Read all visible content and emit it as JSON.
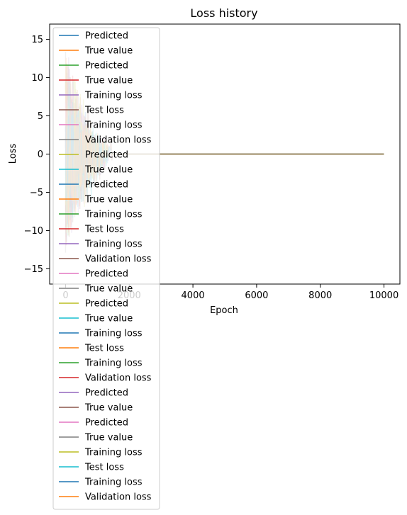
{
  "chart_data": {
    "type": "line",
    "title": "Loss history",
    "xlabel": "Epoch",
    "ylabel": "Loss",
    "xlim": [
      -500,
      10500
    ],
    "ylim": [
      -17,
      17
    ],
    "x_ticks": [
      0,
      2000,
      4000,
      6000,
      8000,
      10000
    ],
    "y_ticks": [
      -15,
      -10,
      -5,
      0,
      5,
      10,
      15
    ],
    "grid": false,
    "legend_position": "upper-left",
    "noise": {
      "x_range": [
        0,
        1500
      ],
      "amplitude_max": 14.8
    },
    "series": [
      {
        "name": "Predicted",
        "color": "#1f77b4"
      },
      {
        "name": "True value",
        "color": "#ff7f0e"
      },
      {
        "name": "Predicted",
        "color": "#2ca02c"
      },
      {
        "name": "True value",
        "color": "#d62728"
      },
      {
        "name": "Training loss",
        "color": "#9467bd"
      },
      {
        "name": "Test loss",
        "color": "#8c564b"
      },
      {
        "name": "Training loss",
        "color": "#e377c2"
      },
      {
        "name": "Validation loss",
        "color": "#7f7f7f"
      },
      {
        "name": "Predicted",
        "color": "#bcbd22"
      },
      {
        "name": "True value",
        "color": "#17becf"
      },
      {
        "name": "Predicted",
        "color": "#1f77b4"
      },
      {
        "name": "True value",
        "color": "#ff7f0e"
      },
      {
        "name": "Training loss",
        "color": "#2ca02c"
      },
      {
        "name": "Test loss",
        "color": "#d62728"
      },
      {
        "name": "Training loss",
        "color": "#9467bd"
      },
      {
        "name": "Validation loss",
        "color": "#8c564b"
      },
      {
        "name": "Predicted",
        "color": "#e377c2"
      },
      {
        "name": "True value",
        "color": "#7f7f7f"
      },
      {
        "name": "Predicted",
        "color": "#bcbd22"
      },
      {
        "name": "True value",
        "color": "#17becf"
      },
      {
        "name": "Training loss",
        "color": "#1f77b4"
      },
      {
        "name": "Test loss",
        "color": "#ff7f0e"
      },
      {
        "name": "Training loss",
        "color": "#2ca02c"
      },
      {
        "name": "Validation loss",
        "color": "#d62728"
      },
      {
        "name": "Predicted",
        "color": "#9467bd"
      },
      {
        "name": "True value",
        "color": "#8c564b"
      },
      {
        "name": "Predicted",
        "color": "#e377c2"
      },
      {
        "name": "True value",
        "color": "#7f7f7f"
      },
      {
        "name": "Training loss",
        "color": "#bcbd22"
      },
      {
        "name": "Test loss",
        "color": "#17becf"
      },
      {
        "name": "Training loss",
        "color": "#1f77b4"
      },
      {
        "name": "Validation loss",
        "color": "#ff7f0e"
      }
    ]
  }
}
